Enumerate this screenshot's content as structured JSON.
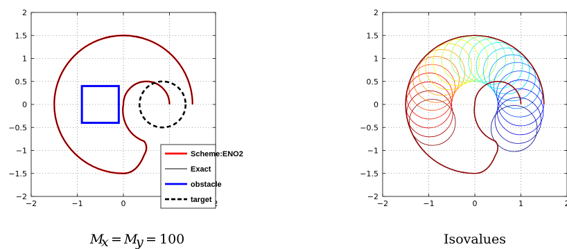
{
  "chart_data": [
    {
      "type": "line",
      "caption": "M_x = M_y = 100",
      "xlim": [
        -2,
        2
      ],
      "ylim": [
        -2,
        2
      ],
      "xticks": [
        "−2",
        "−1",
        "0",
        "1",
        "2"
      ],
      "yticks": [
        "2",
        "1.5",
        "1",
        "0.5",
        "0",
        "−0.5",
        "−1",
        "−1.5",
        "−2"
      ],
      "grid": true,
      "legend_position": "bottom-right",
      "legend": [
        {
          "label": "Scheme:ENO2",
          "color": "#ff0000",
          "style": "thick-solid"
        },
        {
          "label": "Exact",
          "color": "#000000",
          "style": "thin-solid"
        },
        {
          "label": "obstacle",
          "color": "#0000ff",
          "style": "thick-solid"
        },
        {
          "label": "target",
          "color": "#000000",
          "style": "thick-dashed"
        }
      ],
      "shapes": {
        "front_outer_radius": 1.5,
        "front_inner_radius": 0.5,
        "front_inner_center": [
          0.5,
          0
        ],
        "lower_slot": {
          "x_from": -0.4,
          "x_to": 0.5,
          "y_top": -0.85,
          "y_bottom": -1.12
        },
        "obstacle": {
          "x": [
            -0.9,
            -0.1
          ],
          "y": [
            -0.4,
            0.4
          ]
        },
        "target": {
          "center": [
            0.85,
            0
          ],
          "radius": 0.5
        }
      }
    },
    {
      "type": "contour",
      "caption": "Isovalues",
      "xlim": [
        -2,
        2
      ],
      "ylim": [
        -2,
        2
      ],
      "xticks": [
        "−2",
        "−1",
        "0",
        "1",
        "2"
      ],
      "yticks": [
        "2",
        "1.5",
        "1",
        "0.5",
        "0",
        "−0.5",
        "−1",
        "−1.5",
        "−2"
      ],
      "grid": true,
      "colormap": "jet",
      "isovalue_circle_count": 22,
      "isovalue_circle_radius": 0.5
    }
  ]
}
